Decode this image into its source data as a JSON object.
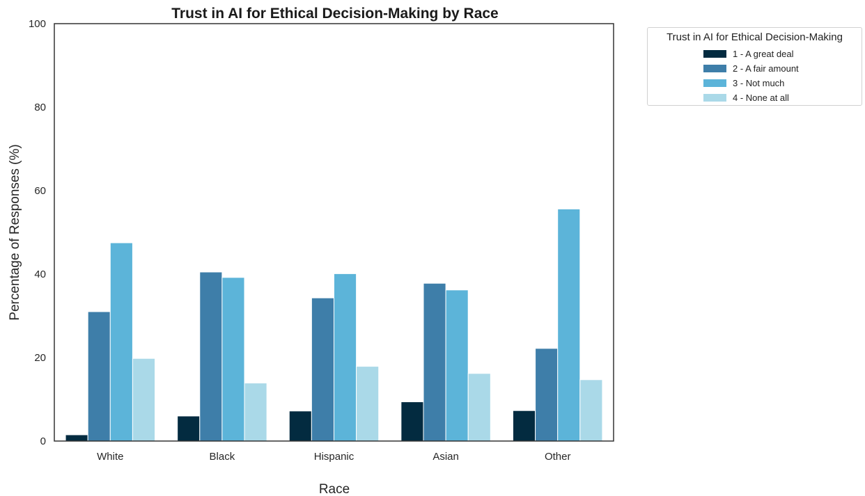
{
  "chart_data": {
    "type": "bar",
    "title": "Trust in AI for Ethical Decision-Making by Race",
    "xlabel": "Race",
    "ylabel": "Percentage of Responses (%)",
    "ylim": [
      0,
      100
    ],
    "yticks": [
      "0",
      "20",
      "40",
      "60",
      "80",
      "100"
    ],
    "categories": [
      "White",
      "Black",
      "Hispanic",
      "Asian",
      "Other"
    ],
    "legend_title": "Trust in AI for Ethical Decision-Making",
    "legend_position": "outside-top-right",
    "grid": false,
    "series": [
      {
        "name": "1 - A great deal",
        "color": "#032b40",
        "values": [
          1.5,
          6.0,
          7.2,
          9.4,
          7.3
        ]
      },
      {
        "name": "2 - A fair amount",
        "color": "#3e7ea9",
        "values": [
          31.0,
          40.5,
          34.3,
          37.8,
          22.2
        ]
      },
      {
        "name": "3 - Not much",
        "color": "#5cb4d9",
        "values": [
          47.5,
          39.2,
          40.1,
          36.2,
          55.6
        ]
      },
      {
        "name": "4 - None at all",
        "color": "#aad9e8",
        "values": [
          19.8,
          13.9,
          17.9,
          16.2,
          14.7
        ]
      }
    ]
  }
}
